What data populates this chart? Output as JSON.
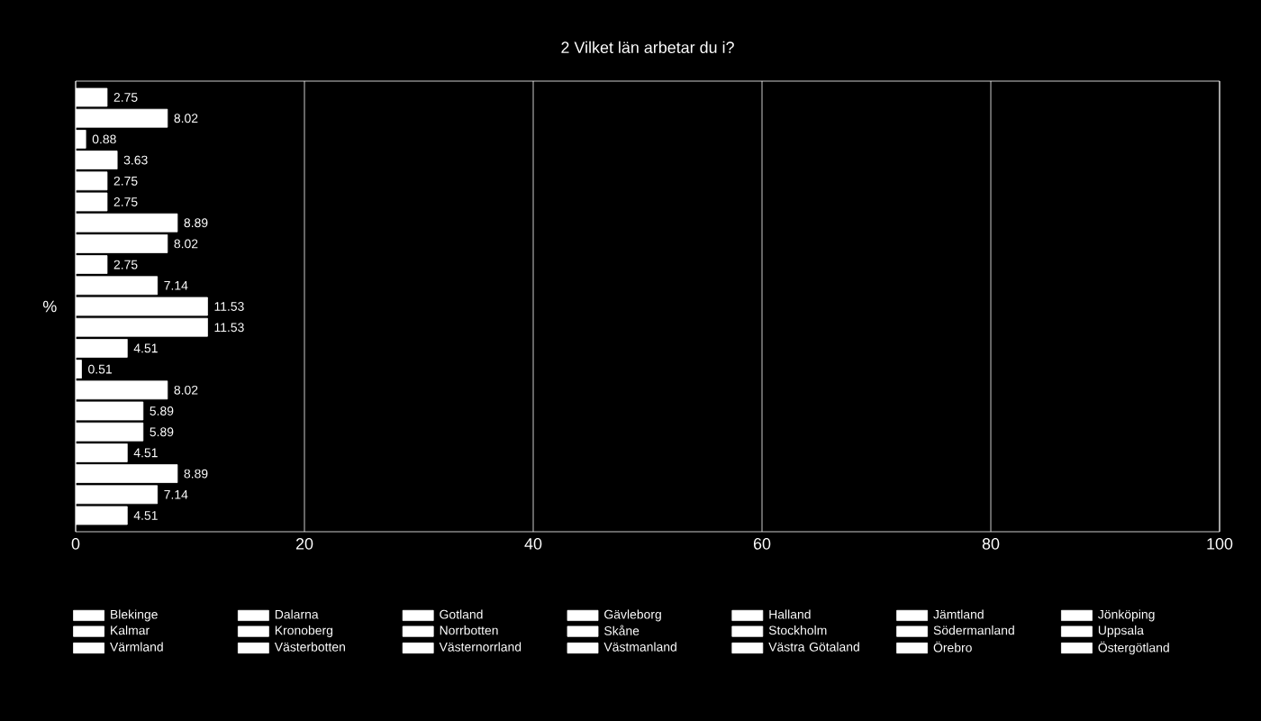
{
  "chart_data": {
    "type": "bar",
    "orientation": "horizontal",
    "title": "2 Vilket län arbetar du i?",
    "ylabel": "%",
    "categories": [
      null
    ],
    "xlim": [
      0,
      100
    ],
    "xticks": [
      0,
      20,
      40,
      60,
      80,
      100
    ],
    "grid": "x",
    "legend": "bottom",
    "data_labels": true,
    "series": [
      {
        "name": "Blekinge",
        "color": "#ffffff",
        "values": [
          2.75
        ]
      },
      {
        "name": "Dalarna",
        "color": "#ffffff",
        "values": [
          8.02
        ]
      },
      {
        "name": "Gotland",
        "color": "#ffffff",
        "values": [
          0.88
        ]
      },
      {
        "name": "Gävleborg",
        "color": "#ffffff",
        "values": [
          3.63
        ]
      },
      {
        "name": "Halland",
        "color": "#ffffff",
        "values": [
          2.75
        ]
      },
      {
        "name": "Jämtland",
        "color": "#ffffff",
        "values": [
          2.75
        ]
      },
      {
        "name": "Jönköping",
        "color": "#ffffff",
        "values": [
          8.89
        ]
      },
      {
        "name": "Kalmar",
        "color": "#ffffff",
        "values": [
          8.02
        ]
      },
      {
        "name": "Kronoberg",
        "color": "#ffffff",
        "values": [
          2.75
        ]
      },
      {
        "name": "Norrbotten",
        "color": "#ffffff",
        "values": [
          7.14
        ]
      },
      {
        "name": "Skåne",
        "color": "#ffffff",
        "values": [
          11.53
        ]
      },
      {
        "name": "Stockholm",
        "color": "#ffffff",
        "values": [
          11.53
        ]
      },
      {
        "name": "Södermanland",
        "color": "#ffffff",
        "values": [
          4.51
        ]
      },
      {
        "name": "Uppsala",
        "color": "#ffffff",
        "values": [
          0.51
        ]
      },
      {
        "name": "Värmland",
        "color": "#ffffff",
        "values": [
          8.02
        ]
      },
      {
        "name": "Västerbotten",
        "color": "#ffffff",
        "values": [
          5.89
        ]
      },
      {
        "name": "Västernorrland",
        "color": "#ffffff",
        "values": [
          5.89
        ]
      },
      {
        "name": "Västmanland",
        "color": "#ffffff",
        "values": [
          4.51
        ]
      },
      {
        "name": "Västra Götaland",
        "color": "#ffffff",
        "values": [
          8.89
        ]
      },
      {
        "name": "Örebro",
        "color": "#ffffff",
        "values": [
          7.14
        ]
      },
      {
        "name": "Östergötland",
        "color": "#ffffff",
        "values": [
          4.51
        ]
      }
    ]
  }
}
